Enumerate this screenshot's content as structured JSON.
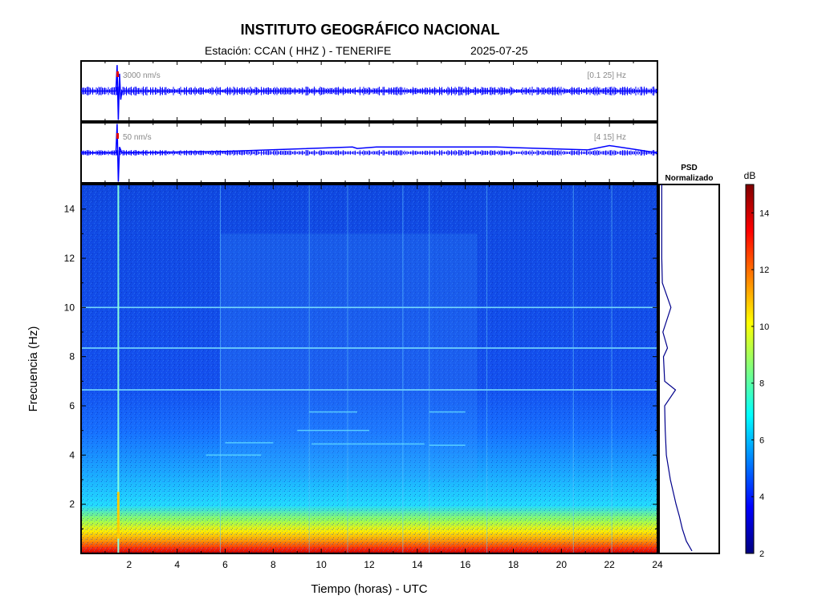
{
  "header": {
    "title": "INSTITUTO GEOGRÁFICO NACIONAL",
    "station": "Estación:  CCAN ( HHZ ) - TENERIFE",
    "date": "2025-07-25"
  },
  "chart_data": [
    {
      "type": "line",
      "panel": "seismogram-broadband",
      "scale_label": "3000 nm/s",
      "filter_label": "[0.1 25] Hz",
      "x": [
        0,
        1.45,
        1.5,
        1.55,
        1.6,
        1.65,
        1.7,
        24
      ],
      "y": [
        0,
        0,
        0.9,
        -1.0,
        0.6,
        -0.3,
        0,
        0
      ],
      "color": "#0000ff"
    },
    {
      "type": "line",
      "panel": "seismogram-filtered",
      "scale_label": "50 nm/s",
      "filter_label": "[4 15] Hz",
      "x": [
        0,
        1.45,
        1.5,
        1.55,
        1.6,
        1.7,
        6,
        11.3,
        11.5,
        12.3,
        14.5,
        17.3,
        21.1,
        22,
        24
      ],
      "y": [
        0,
        0,
        1.0,
        -1.0,
        0.2,
        0,
        0.05,
        0.2,
        0.15,
        0.2,
        0.2,
        0.2,
        0.1,
        0.25,
        0
      ],
      "color": "#0000ff"
    },
    {
      "type": "heatmap",
      "panel": "spectrogram",
      "xlabel": "Tiempo (horas) - UTC",
      "ylabel": "Frecuencia  (Hz)",
      "xlim": [
        0,
        24
      ],
      "ylim": [
        0,
        15
      ],
      "xticks": [
        "2",
        "4",
        "6",
        "8",
        "10",
        "12",
        "14",
        "16",
        "18",
        "20",
        "22",
        "24"
      ],
      "yticks": [
        "2",
        "4",
        "6",
        "8",
        "10",
        "12",
        "14"
      ],
      "colorbar": {
        "label": "dB",
        "range": [
          2,
          15
        ],
        "ticks": [
          "2",
          "4",
          "6",
          "8",
          "10",
          "12",
          "14"
        ],
        "colormap": "jet"
      },
      "constant_lines_hz": [
        10.0,
        8.35,
        6.65
      ],
      "event_hour": 1.55
    },
    {
      "type": "line",
      "panel": "psd-normalized",
      "title_line1": "PSD",
      "title_line2": "Normalizado",
      "freq_hz": [
        0.1,
        0.3,
        0.5,
        1,
        1.5,
        2,
        3,
        4,
        5,
        6,
        6.65,
        7,
        8,
        8.35,
        9,
        10,
        11,
        12,
        14,
        15
      ],
      "value": [
        0.55,
        0.5,
        0.45,
        0.38,
        0.33,
        0.27,
        0.17,
        0.1,
        0.08,
        0.07,
        0.26,
        0.07,
        0.05,
        0.12,
        0.04,
        0.18,
        0.03,
        0.02,
        0.02,
        0.02
      ],
      "color": "#00008b"
    }
  ]
}
